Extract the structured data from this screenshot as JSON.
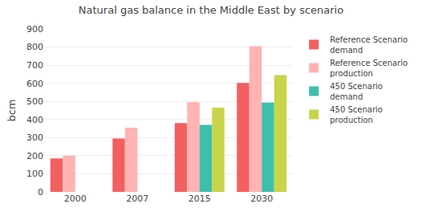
{
  "chart_data": {
    "type": "bar",
    "title": "Natural gas balance in the Middle East by scenario",
    "ylabel": "bcm",
    "categories": [
      "2000",
      "2007",
      "2015",
      "2030"
    ],
    "series": [
      {
        "name": "Reference Scenario\ndemand",
        "color": "#F26060",
        "values": [
          185,
          295,
          380,
          602
        ]
      },
      {
        "name": "Reference Scenario\nproduction",
        "color": "#FFB3B3",
        "values": [
          200,
          355,
          495,
          805
        ]
      },
      {
        "name": "450 Scenario\ndemand",
        "color": "#3DBFAA",
        "values": [
          null,
          null,
          370,
          493
        ]
      },
      {
        "name": "450 Scenario\nproduction",
        "color": "#C8D44A",
        "values": [
          null,
          null,
          465,
          645
        ]
      }
    ],
    "ylim": [
      0,
      900
    ],
    "yticks": [
      0,
      100,
      200,
      300,
      400,
      500,
      600,
      700,
      800,
      900
    ],
    "grid": true,
    "legend": "right"
  }
}
